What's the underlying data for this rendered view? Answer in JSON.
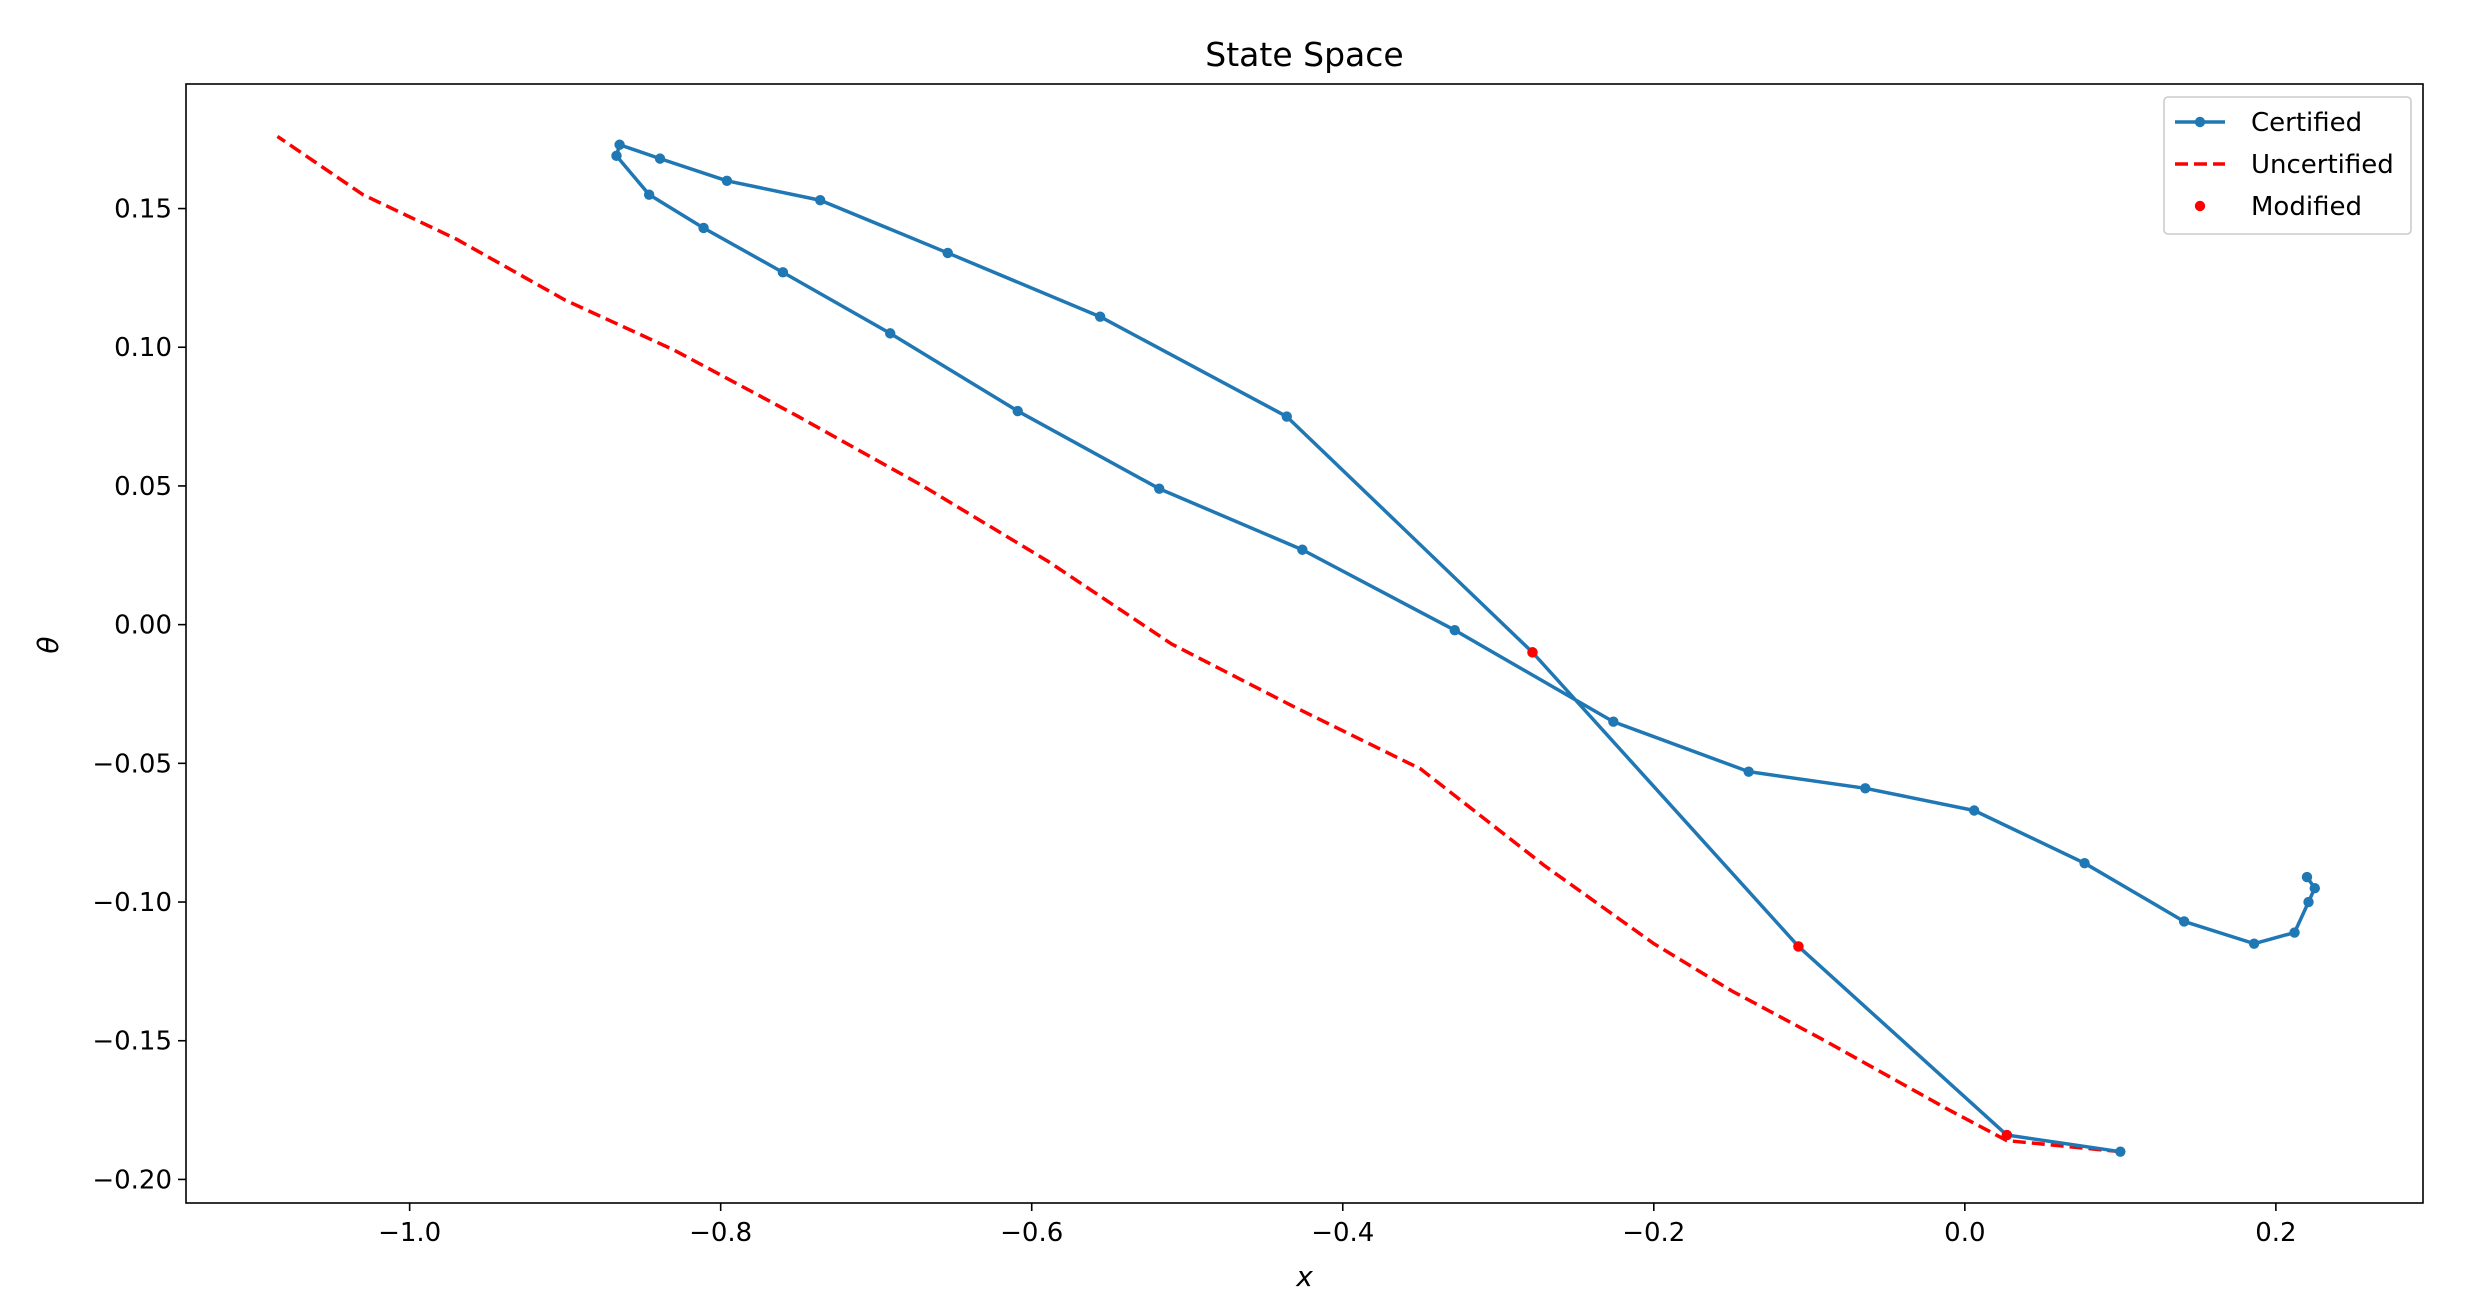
{
  "chart_data": {
    "type": "line",
    "title": "State Space",
    "xlabel": "x",
    "ylabel": "θ",
    "xlim": [
      -1.1438,
      0.2946
    ],
    "ylim": [
      -0.2085,
      0.1949
    ],
    "xticks": [
      -1.0,
      -0.8,
      -0.6,
      -0.4,
      -0.2,
      0.0,
      0.2
    ],
    "xtick_labels": [
      "−1.0",
      "−0.8",
      "−0.6",
      "−0.4",
      "−0.2",
      "0.0",
      "0.2"
    ],
    "yticks": [
      -0.2,
      -0.15,
      -0.1,
      -0.05,
      0.0,
      0.05,
      0.1,
      0.15
    ],
    "ytick_labels": [
      "−0.20",
      "−0.15",
      "−0.10",
      "−0.05",
      "0.00",
      "0.05",
      "0.10",
      "0.15"
    ],
    "grid": false,
    "legend_position": "top-right",
    "series": [
      {
        "name": "Certified",
        "style": "solid-with-markers",
        "color": "#1f77b4",
        "x": [
          0.1,
          0.027,
          -0.107,
          -0.278,
          -0.436,
          -0.556,
          -0.654,
          -0.736,
          -0.796,
          -0.839,
          -0.865,
          -0.867,
          -0.846,
          -0.811,
          -0.76,
          -0.691,
          -0.609,
          -0.518,
          -0.426,
          -0.328,
          -0.226,
          -0.139,
          -0.064,
          0.006,
          0.077,
          0.141,
          0.186,
          0.212,
          0.221,
          0.225,
          0.22
        ],
        "y": [
          -0.19,
          -0.184,
          -0.116,
          -0.01,
          0.075,
          0.111,
          0.134,
          0.153,
          0.16,
          0.168,
          0.173,
          0.169,
          0.155,
          0.143,
          0.127,
          0.105,
          0.077,
          0.049,
          0.027,
          -0.002,
          -0.035,
          -0.053,
          -0.059,
          -0.067,
          -0.086,
          -0.107,
          -0.115,
          -0.111,
          -0.1,
          -0.095,
          -0.091
        ]
      },
      {
        "name": "Uncertified",
        "style": "dashed",
        "color": "#ff0000",
        "x": [
          0.1,
          0.027,
          -0.01,
          -0.09,
          -0.15,
          -0.2,
          -0.27,
          -0.35,
          -0.43,
          -0.51,
          -0.59,
          -0.67,
          -0.75,
          -0.83,
          -0.9,
          -0.97,
          -1.03,
          -1.085
        ],
        "y": [
          -0.19,
          -0.186,
          -0.175,
          -0.15,
          -0.132,
          -0.115,
          -0.087,
          -0.052,
          -0.03,
          -0.007,
          0.023,
          0.05,
          0.075,
          0.099,
          0.117,
          0.139,
          0.155,
          0.176
        ]
      },
      {
        "name": "Modified",
        "style": "markers",
        "color": "#ff0000",
        "x": [
          -0.278,
          -0.107,
          0.027
        ],
        "y": [
          -0.01,
          -0.116,
          -0.184
        ]
      }
    ]
  }
}
